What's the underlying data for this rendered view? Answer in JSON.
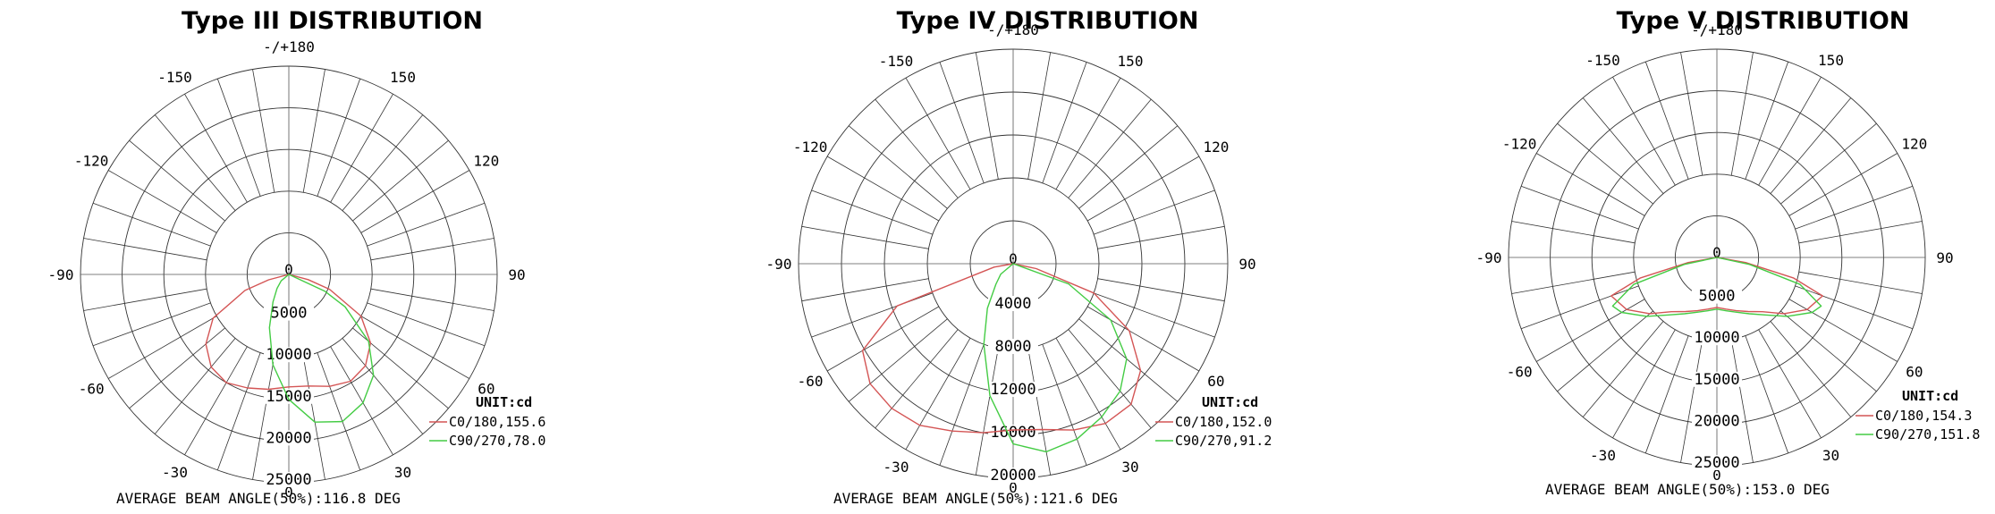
{
  "chart_data": [
    {
      "type": "polar",
      "title": "Type III DISTRIBUTION",
      "unit": "UNIT:cd",
      "angle_labels": [
        "-/+180",
        "-150",
        "150",
        "-120",
        "120",
        "-90",
        "90",
        "-60",
        "60",
        "-30",
        "30",
        "0",
        "0"
      ],
      "radial_ticks": [
        5000,
        10000,
        15000,
        20000,
        25000
      ],
      "rmax": 25000,
      "series": [
        {
          "name": "C0/180,155.6",
          "color": "#d45555",
          "angles": [
            -75,
            -70,
            -60,
            -50,
            -40,
            -30,
            -20,
            -10,
            0,
            10,
            20,
            30,
            40,
            50,
            60,
            70,
            75
          ],
          "values": [
            2500,
            5600,
            10500,
            13000,
            14500,
            15000,
            14500,
            14000,
            13500,
            13600,
            14300,
            14800,
            14300,
            12800,
            10000,
            5200,
            2400
          ]
        },
        {
          "name": "C90/270,78.0",
          "color": "#44cc44",
          "angles": [
            -50,
            -40,
            -30,
            -20,
            -10,
            0,
            10,
            20,
            30,
            40,
            50,
            60,
            65
          ],
          "values": [
            1200,
            2200,
            3800,
            6800,
            11000,
            15000,
            18000,
            18800,
            17800,
            15800,
            12500,
            7800,
            4800
          ]
        }
      ],
      "beam_text": "AVERAGE BEAM ANGLE(50%):116.8 DEG"
    },
    {
      "type": "polar",
      "title": "Type IV DISTRIBUTION",
      "unit": "UNIT:cd",
      "angle_labels": [
        "-/+180",
        "-150",
        "150",
        "-120",
        "120",
        "-90",
        "90",
        "-60",
        "60",
        "-30",
        "30",
        "0",
        "0"
      ],
      "radial_ticks": [
        4000,
        8000,
        12000,
        16000,
        20000
      ],
      "rmax": 20000,
      "series": [
        {
          "name": "C0/180,152.0",
          "color": "#d45555",
          "angles": [
            -80,
            -70,
            -60,
            -50,
            -40,
            -30,
            -20,
            -10,
            0,
            10,
            20,
            30,
            40,
            50,
            60,
            70,
            78
          ],
          "values": [
            1800,
            11500,
            16200,
            17400,
            17600,
            17400,
            16600,
            16000,
            15500,
            15700,
            16500,
            17200,
            17100,
            15500,
            12500,
            8000,
            2200
          ]
        },
        {
          "name": "C90/270,91.2",
          "color": "#44cc44",
          "angles": [
            -50,
            -40,
            -30,
            -20,
            -10,
            0,
            10,
            20,
            30,
            40,
            50,
            60,
            70
          ],
          "values": [
            1500,
            2500,
            4800,
            8000,
            12500,
            16800,
            17800,
            17400,
            16500,
            15500,
            13800,
            10500,
            5500
          ]
        }
      ],
      "beam_text": "AVERAGE BEAM ANGLE(50%):121.6 DEG"
    },
    {
      "type": "polar",
      "title": "Type V DISTRIBUTION",
      "unit": "UNIT:cd",
      "angle_labels": [
        "-/+180",
        "-150",
        "150",
        "-120",
        "120",
        "-90",
        "90",
        "-60",
        "60",
        "-30",
        "30",
        "0",
        "0"
      ],
      "radial_ticks": [
        5000,
        10000,
        15000,
        20000,
        25000
      ],
      "rmax": 25000,
      "series": [
        {
          "name": "C0/180,154.3",
          "color": "#d45555",
          "angles": [
            -80,
            -75,
            -70,
            -60,
            -50,
            -40,
            -30,
            -20,
            -10,
            0,
            10,
            20,
            30,
            40,
            50,
            60,
            70,
            75,
            80
          ],
          "values": [
            3500,
            9500,
            13500,
            12500,
            10500,
            8500,
            7500,
            6800,
            6300,
            6000,
            6300,
            6800,
            7500,
            8500,
            10500,
            12500,
            13500,
            9500,
            3500
          ]
        },
        {
          "name": "C90/270,151.8",
          "color": "#44cc44",
          "angles": [
            -78,
            -72,
            -65,
            -60,
            -50,
            -40,
            -30,
            -20,
            -10,
            0,
            10,
            20,
            30,
            40,
            50,
            60,
            65,
            72,
            78
          ],
          "values": [
            4000,
            10500,
            13800,
            13200,
            11000,
            9000,
            7800,
            7000,
            6500,
            6200,
            6500,
            7000,
            7800,
            9000,
            11000,
            13200,
            13800,
            10500,
            4000
          ]
        }
      ],
      "beam_text": "AVERAGE BEAM ANGLE(50%):153.0 DEG"
    }
  ]
}
